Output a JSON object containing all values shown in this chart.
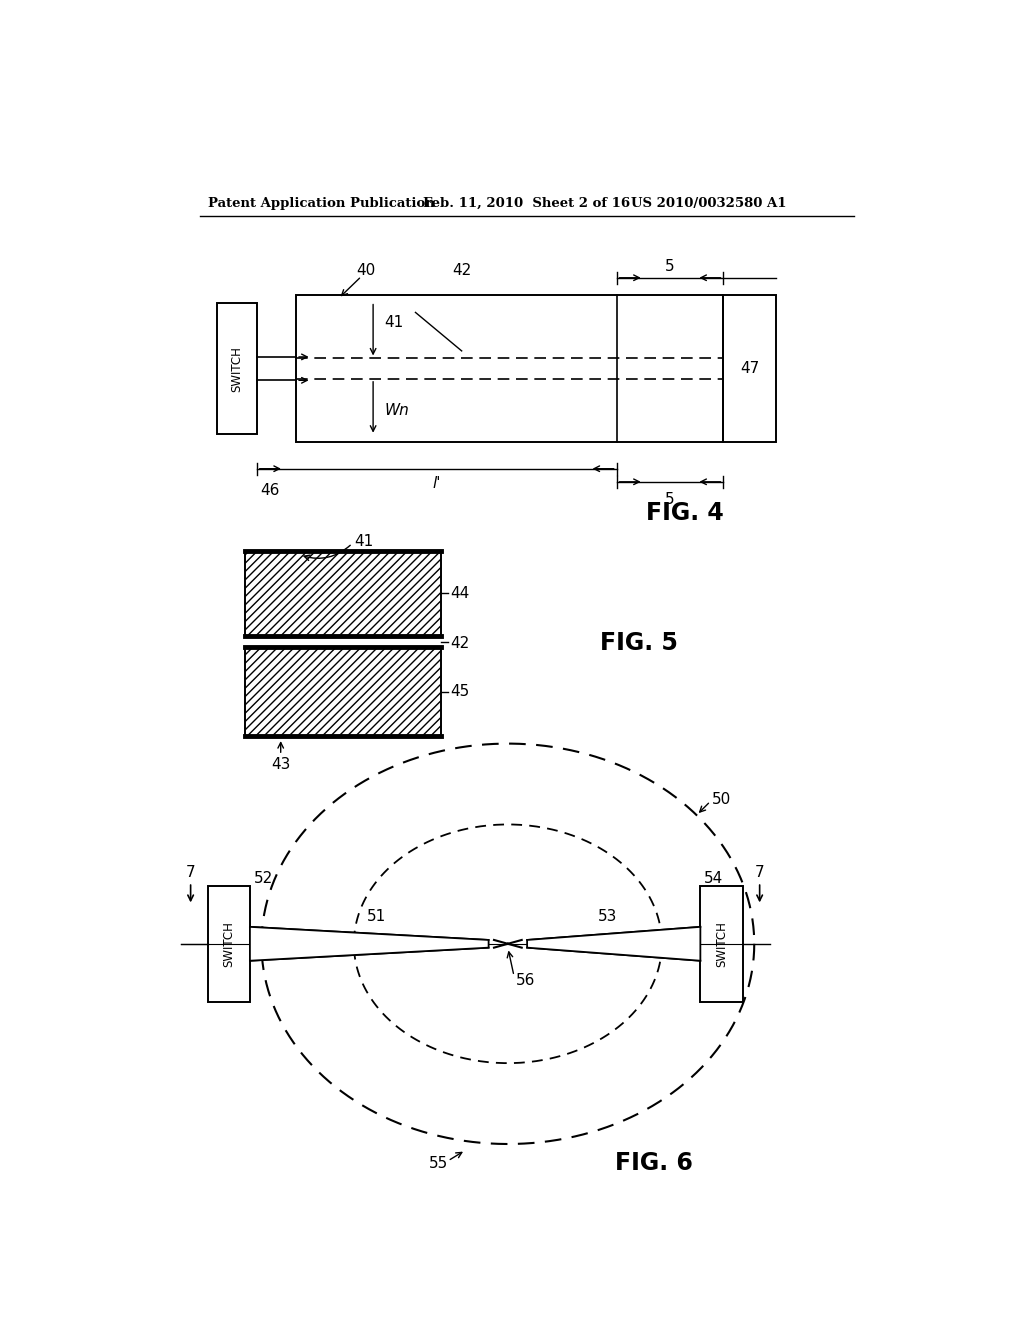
{
  "bg_color": "#ffffff",
  "header_left": "Patent Application Publication",
  "header_mid": "Feb. 11, 2010  Sheet 2 of 16",
  "header_right": "US 2010/0032580 A1",
  "fig4_label": "FIG. 4",
  "fig5_label": "FIG. 5",
  "fig6_label": "FIG. 6",
  "lw": 1.4,
  "label_fs": 11
}
